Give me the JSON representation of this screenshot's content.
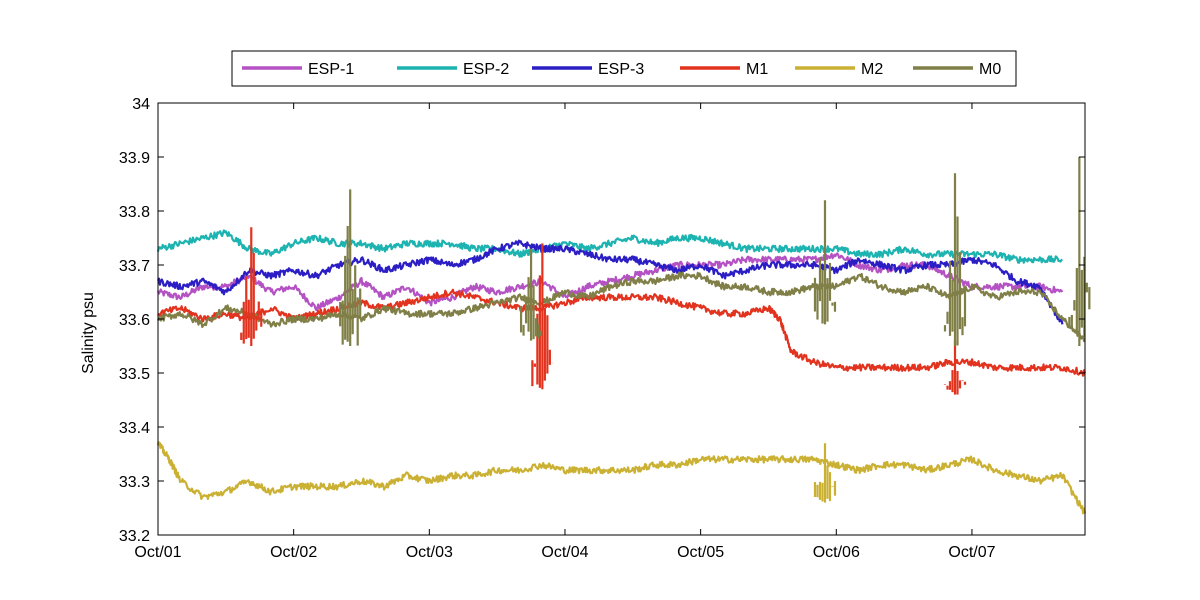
{
  "chart_data": {
    "type": "line",
    "title": "",
    "xlabel": "",
    "ylabel": "Salinity psu",
    "xlim": [
      "2007-10-01T00:00",
      "2007-10-07T20:00"
    ],
    "ylim": [
      33.2,
      34.0
    ],
    "y_ticks": [
      33.2,
      33.3,
      33.4,
      33.5,
      33.6,
      33.7,
      33.8,
      33.9,
      34.0
    ],
    "x_ticks": [
      {
        "x": "2007-10-01T00:00",
        "label": "Oct/01"
      },
      {
        "x": "2007-10-02T00:00",
        "label": "Oct/02"
      },
      {
        "x": "2007-10-03T00:00",
        "label": "Oct/03"
      },
      {
        "x": "2007-10-04T00:00",
        "label": "Oct/04"
      },
      {
        "x": "2007-10-05T00:00",
        "label": "Oct/05"
      },
      {
        "x": "2007-10-06T00:00",
        "label": "Oct/06"
      },
      {
        "x": "2007-10-07T00:00",
        "label": "Oct/07"
      }
    ],
    "grid": false,
    "legend_position": "top-center",
    "series": [
      {
        "name": "ESP-1",
        "color": "#b452c4",
        "x": [
          "2007-10-01T00:00",
          "2007-10-01T04:00",
          "2007-10-01T08:00",
          "2007-10-01T12:00",
          "2007-10-01T16:00",
          "2007-10-01T20:00",
          "2007-10-02T00:00",
          "2007-10-02T04:00",
          "2007-10-02T08:00",
          "2007-10-02T12:00",
          "2007-10-02T16:00",
          "2007-10-02T20:00",
          "2007-10-03T00:00",
          "2007-10-03T04:00",
          "2007-10-03T08:00",
          "2007-10-03T12:00",
          "2007-10-03T16:00",
          "2007-10-03T20:00",
          "2007-10-04T00:00",
          "2007-10-04T04:00",
          "2007-10-04T08:00",
          "2007-10-04T12:00",
          "2007-10-04T16:00",
          "2007-10-04T20:00",
          "2007-10-05T00:00",
          "2007-10-05T04:00",
          "2007-10-05T08:00",
          "2007-10-05T12:00",
          "2007-10-05T16:00",
          "2007-10-05T20:00",
          "2007-10-06T00:00",
          "2007-10-06T04:00",
          "2007-10-06T08:00",
          "2007-10-06T12:00",
          "2007-10-06T16:00",
          "2007-10-06T20:00",
          "2007-10-07T00:00",
          "2007-10-07T04:00",
          "2007-10-07T08:00",
          "2007-10-07T12:00",
          "2007-10-07T16:00"
        ],
        "y": [
          33.65,
          33.64,
          33.66,
          33.66,
          33.68,
          33.65,
          33.66,
          33.62,
          33.64,
          33.67,
          33.64,
          33.66,
          33.63,
          33.64,
          33.66,
          33.65,
          33.66,
          33.67,
          33.64,
          33.66,
          33.67,
          33.68,
          33.69,
          33.7,
          33.7,
          33.7,
          33.71,
          33.71,
          33.71,
          33.71,
          33.72,
          33.7,
          33.69,
          33.7,
          33.7,
          33.68,
          33.66,
          33.66,
          33.66,
          33.66,
          33.65
        ]
      },
      {
        "name": "ESP-2",
        "color": "#1cb3b0",
        "x": [
          "2007-10-01T00:00",
          "2007-10-01T04:00",
          "2007-10-01T08:00",
          "2007-10-01T12:00",
          "2007-10-01T16:00",
          "2007-10-01T20:00",
          "2007-10-02T00:00",
          "2007-10-02T04:00",
          "2007-10-02T08:00",
          "2007-10-02T12:00",
          "2007-10-02T16:00",
          "2007-10-02T20:00",
          "2007-10-03T00:00",
          "2007-10-03T04:00",
          "2007-10-03T08:00",
          "2007-10-03T12:00",
          "2007-10-03T16:00",
          "2007-10-03T20:00",
          "2007-10-04T00:00",
          "2007-10-04T04:00",
          "2007-10-04T08:00",
          "2007-10-04T12:00",
          "2007-10-04T16:00",
          "2007-10-04T20:00",
          "2007-10-05T00:00",
          "2007-10-05T04:00",
          "2007-10-05T08:00",
          "2007-10-05T12:00",
          "2007-10-05T16:00",
          "2007-10-05T20:00",
          "2007-10-06T00:00",
          "2007-10-06T04:00",
          "2007-10-06T08:00",
          "2007-10-06T12:00",
          "2007-10-06T16:00",
          "2007-10-06T20:00",
          "2007-10-07T00:00",
          "2007-10-07T04:00",
          "2007-10-07T08:00",
          "2007-10-07T12:00",
          "2007-10-07T16:00"
        ],
        "y": [
          33.73,
          33.74,
          33.75,
          33.76,
          33.73,
          33.72,
          33.74,
          33.75,
          33.74,
          33.74,
          33.73,
          33.74,
          33.74,
          33.74,
          33.73,
          33.73,
          33.72,
          33.73,
          33.74,
          33.73,
          33.74,
          33.75,
          33.74,
          33.75,
          33.75,
          33.74,
          33.73,
          33.73,
          33.73,
          33.73,
          33.73,
          33.72,
          33.72,
          33.73,
          33.72,
          33.72,
          33.72,
          33.72,
          33.71,
          33.71,
          33.71
        ]
      },
      {
        "name": "ESP-3",
        "color": "#2b1ec4",
        "x": [
          "2007-10-01T00:00",
          "2007-10-01T04:00",
          "2007-10-01T08:00",
          "2007-10-01T12:00",
          "2007-10-01T16:00",
          "2007-10-01T20:00",
          "2007-10-02T00:00",
          "2007-10-02T04:00",
          "2007-10-02T08:00",
          "2007-10-02T12:00",
          "2007-10-02T16:00",
          "2007-10-02T20:00",
          "2007-10-03T00:00",
          "2007-10-03T04:00",
          "2007-10-03T08:00",
          "2007-10-03T12:00",
          "2007-10-03T16:00",
          "2007-10-03T20:00",
          "2007-10-04T00:00",
          "2007-10-04T04:00",
          "2007-10-04T08:00",
          "2007-10-04T12:00",
          "2007-10-04T16:00",
          "2007-10-04T20:00",
          "2007-10-05T00:00",
          "2007-10-05T04:00",
          "2007-10-05T08:00",
          "2007-10-05T12:00",
          "2007-10-05T16:00",
          "2007-10-05T20:00",
          "2007-10-06T00:00",
          "2007-10-06T04:00",
          "2007-10-06T08:00",
          "2007-10-06T12:00",
          "2007-10-06T16:00",
          "2007-10-06T20:00",
          "2007-10-07T00:00",
          "2007-10-07T04:00",
          "2007-10-07T08:00",
          "2007-10-07T12:00",
          "2007-10-07T16:00"
        ],
        "y": [
          33.67,
          33.66,
          33.67,
          33.65,
          33.69,
          33.68,
          33.69,
          33.68,
          33.7,
          33.71,
          33.69,
          33.7,
          33.71,
          33.7,
          33.71,
          33.73,
          33.74,
          33.73,
          33.73,
          33.72,
          33.71,
          33.71,
          33.7,
          33.69,
          33.7,
          33.68,
          33.69,
          33.7,
          33.7,
          33.7,
          33.69,
          33.71,
          33.7,
          33.69,
          33.7,
          33.7,
          33.71,
          33.7,
          33.67,
          33.66,
          33.59
        ]
      },
      {
        "name": "M1",
        "color": "#e2331f",
        "x": [
          "2007-10-01T00:00",
          "2007-10-01T04:00",
          "2007-10-01T08:00",
          "2007-10-01T12:00",
          "2007-10-01T16:00",
          "2007-10-01T20:00",
          "2007-10-02T00:00",
          "2007-10-02T04:00",
          "2007-10-02T08:00",
          "2007-10-02T12:00",
          "2007-10-02T16:00",
          "2007-10-02T20:00",
          "2007-10-03T00:00",
          "2007-10-03T04:00",
          "2007-10-03T08:00",
          "2007-10-03T12:00",
          "2007-10-03T16:00",
          "2007-10-03T20:00",
          "2007-10-04T00:00",
          "2007-10-04T04:00",
          "2007-10-04T08:00",
          "2007-10-04T12:00",
          "2007-10-04T16:00",
          "2007-10-04T20:00",
          "2007-10-05T00:00",
          "2007-10-05T04:00",
          "2007-10-05T08:00",
          "2007-10-05T12:00",
          "2007-10-05T14:00",
          "2007-10-05T16:00",
          "2007-10-05T20:00",
          "2007-10-06T00:00",
          "2007-10-06T04:00",
          "2007-10-06T08:00",
          "2007-10-06T12:00",
          "2007-10-06T16:00",
          "2007-10-06T20:00",
          "2007-10-07T00:00",
          "2007-10-07T04:00",
          "2007-10-07T08:00",
          "2007-10-07T12:00",
          "2007-10-07T16:00",
          "2007-10-07T20:00"
        ],
        "y": [
          33.61,
          33.62,
          33.6,
          33.61,
          33.6,
          33.62,
          33.6,
          33.61,
          33.62,
          33.63,
          33.62,
          33.63,
          33.64,
          33.65,
          33.64,
          33.63,
          33.62,
          33.62,
          33.63,
          33.64,
          33.64,
          33.64,
          33.64,
          33.63,
          33.62,
          33.61,
          33.61,
          33.62,
          33.6,
          33.54,
          33.52,
          33.51,
          33.51,
          33.51,
          33.51,
          33.51,
          33.52,
          33.52,
          33.51,
          33.51,
          33.51,
          33.51,
          33.5
        ]
      },
      {
        "name": "M2",
        "color": "#cbb133",
        "x": [
          "2007-10-01T00:00",
          "2007-10-01T02:00",
          "2007-10-01T04:00",
          "2007-10-01T08:00",
          "2007-10-01T12:00",
          "2007-10-01T16:00",
          "2007-10-01T20:00",
          "2007-10-02T00:00",
          "2007-10-02T04:00",
          "2007-10-02T08:00",
          "2007-10-02T12:00",
          "2007-10-02T16:00",
          "2007-10-02T20:00",
          "2007-10-03T00:00",
          "2007-10-03T04:00",
          "2007-10-03T08:00",
          "2007-10-03T12:00",
          "2007-10-03T16:00",
          "2007-10-03T20:00",
          "2007-10-04T00:00",
          "2007-10-04T04:00",
          "2007-10-04T08:00",
          "2007-10-04T12:00",
          "2007-10-04T16:00",
          "2007-10-04T20:00",
          "2007-10-05T00:00",
          "2007-10-05T04:00",
          "2007-10-05T08:00",
          "2007-10-05T12:00",
          "2007-10-05T16:00",
          "2007-10-05T20:00",
          "2007-10-06T00:00",
          "2007-10-06T04:00",
          "2007-10-06T08:00",
          "2007-10-06T12:00",
          "2007-10-06T16:00",
          "2007-10-06T20:00",
          "2007-10-07T00:00",
          "2007-10-07T04:00",
          "2007-10-07T08:00",
          "2007-10-07T12:00",
          "2007-10-07T16:00",
          "2007-10-07T20:00"
        ],
        "y": [
          33.37,
          33.34,
          33.3,
          33.27,
          33.28,
          33.3,
          33.28,
          33.29,
          33.29,
          33.29,
          33.3,
          33.29,
          33.31,
          33.3,
          33.31,
          33.31,
          33.32,
          33.32,
          33.33,
          33.32,
          33.32,
          33.32,
          33.32,
          33.33,
          33.33,
          33.34,
          33.34,
          33.34,
          33.34,
          33.34,
          33.34,
          33.33,
          33.32,
          33.33,
          33.33,
          33.32,
          33.33,
          33.34,
          33.32,
          33.31,
          33.3,
          33.31,
          33.24
        ]
      },
      {
        "name": "M0",
        "color": "#7f7f47",
        "x": [
          "2007-10-01T00:00",
          "2007-10-01T04:00",
          "2007-10-01T08:00",
          "2007-10-01T12:00",
          "2007-10-01T16:00",
          "2007-10-01T20:00",
          "2007-10-02T00:00",
          "2007-10-02T04:00",
          "2007-10-02T08:00",
          "2007-10-02T12:00",
          "2007-10-02T16:00",
          "2007-10-02T20:00",
          "2007-10-03T00:00",
          "2007-10-03T04:00",
          "2007-10-03T08:00",
          "2007-10-03T12:00",
          "2007-10-03T16:00",
          "2007-10-03T20:00",
          "2007-10-04T00:00",
          "2007-10-04T04:00",
          "2007-10-04T08:00",
          "2007-10-04T12:00",
          "2007-10-04T16:00",
          "2007-10-04T20:00",
          "2007-10-05T00:00",
          "2007-10-05T04:00",
          "2007-10-05T08:00",
          "2007-10-05T12:00",
          "2007-10-05T16:00",
          "2007-10-05T20:00",
          "2007-10-06T00:00",
          "2007-10-06T04:00",
          "2007-10-06T08:00",
          "2007-10-06T12:00",
          "2007-10-06T16:00",
          "2007-10-06T20:00",
          "2007-10-07T00:00",
          "2007-10-07T04:00",
          "2007-10-07T08:00",
          "2007-10-07T12:00",
          "2007-10-07T16:00",
          "2007-10-07T20:00"
        ],
        "y": [
          33.6,
          33.61,
          33.59,
          33.62,
          33.61,
          33.59,
          33.6,
          33.6,
          33.61,
          33.6,
          33.62,
          33.61,
          33.61,
          33.61,
          33.62,
          33.63,
          33.64,
          33.63,
          33.65,
          33.64,
          33.66,
          33.67,
          33.67,
          33.68,
          33.68,
          33.66,
          33.66,
          33.65,
          33.65,
          33.66,
          33.66,
          33.68,
          33.66,
          33.65,
          33.66,
          33.64,
          33.66,
          33.64,
          33.65,
          33.65,
          33.6,
          33.56
        ]
      }
    ],
    "spikes": [
      {
        "series": "M1",
        "x": "2007-10-01T16:30",
        "low": 33.55,
        "high": 33.77
      },
      {
        "series": "M1",
        "x": "2007-10-03T20:00",
        "low": 33.47,
        "high": 33.74
      },
      {
        "series": "M1",
        "x": "2007-10-06T21:00",
        "low": 33.46,
        "high": 33.56
      },
      {
        "series": "M2",
        "x": "2007-10-05T22:00",
        "low": 33.26,
        "high": 33.37
      },
      {
        "series": "M0",
        "x": "2007-10-02T10:00",
        "low": 33.55,
        "high": 33.84
      },
      {
        "series": "M0",
        "x": "2007-10-03T18:00",
        "low": 33.56,
        "high": 33.73
      },
      {
        "series": "M0",
        "x": "2007-10-05T22:00",
        "low": 33.59,
        "high": 33.82
      },
      {
        "series": "M0",
        "x": "2007-10-06T21:00",
        "low": 33.55,
        "high": 33.87
      },
      {
        "series": "M0",
        "x": "2007-10-07T19:00",
        "low": 33.55,
        "high": 33.9
      }
    ]
  }
}
